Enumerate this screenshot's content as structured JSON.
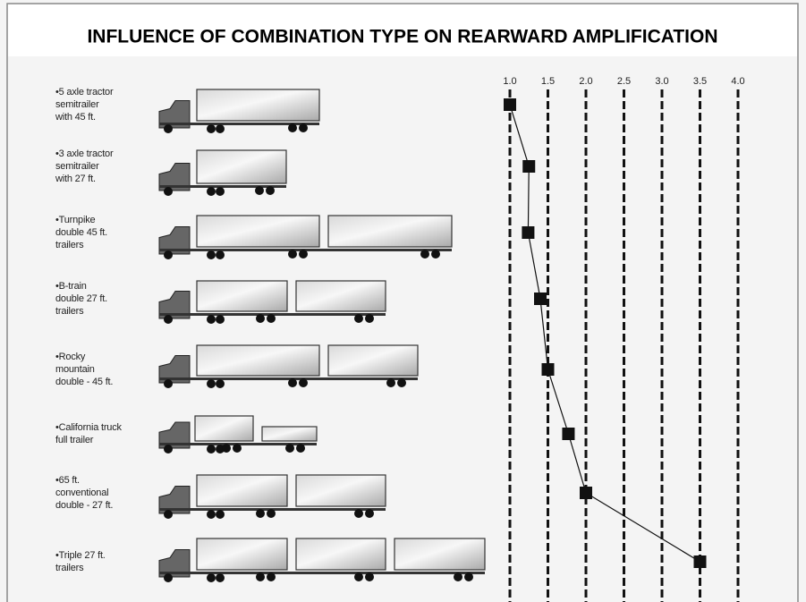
{
  "chart_data": {
    "type": "line",
    "title": "INFLUENCE OF COMBINATION TYPE ON REARWARD AMPLIFICATION",
    "categories": [
      "•5 axle tractor\nsemitrailer\nwith 45 ft.",
      "•3 axle tractor\nsemitrailer\nwith 27 ft.",
      "•Turnpike\ndouble 45 ft.\ntrailers",
      "•B-train\ndouble 27 ft.\ntrailers",
      "•Rocky\nmountain\ndouble - 45 ft.",
      "•California truck\nfull trailer",
      "•65 ft.\nconventional\ndouble - 27 ft.",
      "•Triple 27 ft.\ntrailers"
    ],
    "values": [
      1.0,
      1.25,
      1.24,
      1.4,
      1.5,
      1.77,
      2.0,
      3.5
    ],
    "color": "#111111",
    "xlim": [
      1.0,
      4.0
    ],
    "xticks": [
      {
        "value": 1.0,
        "label": "1.0"
      },
      1.5,
      {
        "value": 2.0,
        "label": "2.0"
      },
      2.5,
      {
        "value": 3.0,
        "label": "3.0"
      },
      3.5,
      {
        "value": 4.0,
        "label": "4.0"
      }
    ],
    "grid": true
  }
}
